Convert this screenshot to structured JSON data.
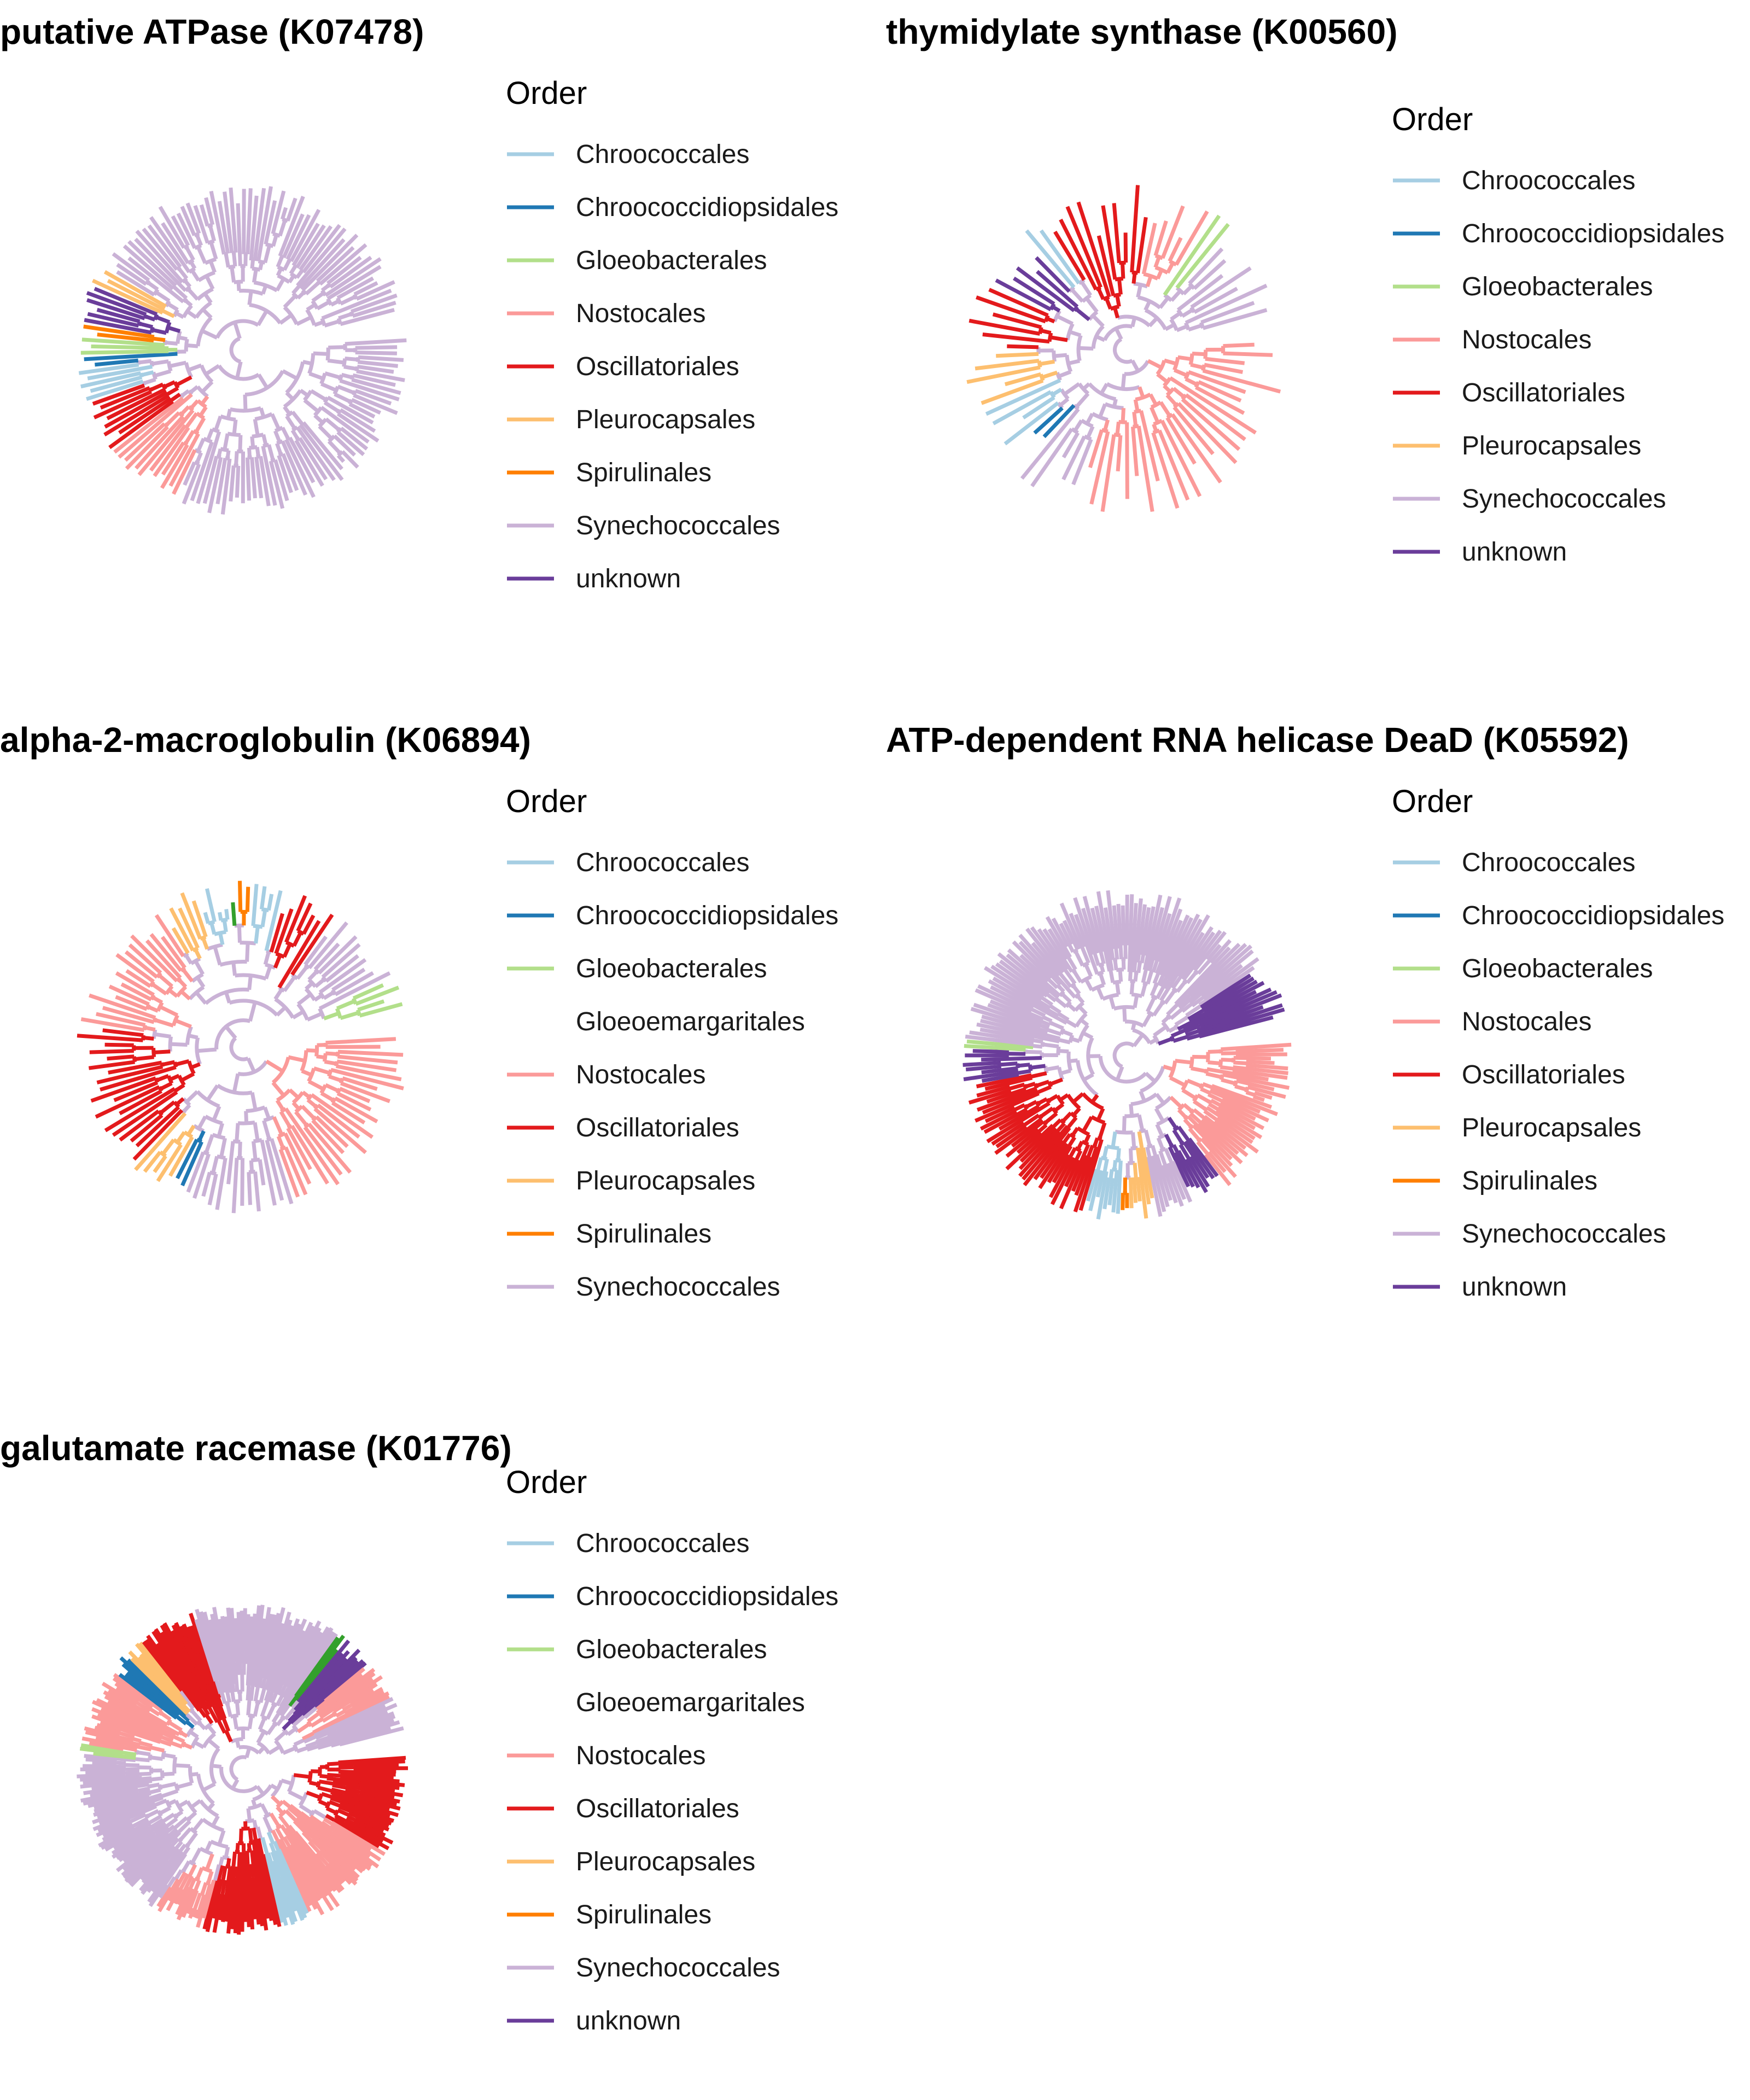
{
  "legend_title": "Order",
  "orders": {
    "Chroococcales": "#a6cee3",
    "Chroococcidiopsidales": "#1f78b4",
    "Gloeobacterales": "#b2df8a",
    "Gloeomargaritales": "#33a02c",
    "Nostocales": "#fb9a99",
    "Oscillatoriales": "#e31a1c",
    "Pleurocapsales": "#fdbf6f",
    "Spirulinales": "#ff7f00",
    "Synechococcales": "#cab2d6",
    "unknown": "#6a3d9a"
  },
  "panels": [
    {
      "title": "putative ATPase (K07478)",
      "legend": [
        "Chroococcales",
        "Chroococcidiopsidales",
        "Gloeobacterales",
        "Nostocales",
        "Oscillatoriales",
        "Pleurocapsales",
        "Spirulinales",
        "Synechococcales",
        "unknown"
      ],
      "clades": [
        {
          "order": "Synechococcales",
          "share": 0.34
        },
        {
          "order": "Nostocales",
          "share": 0.08
        },
        {
          "order": "Oscillatoriales",
          "share": 0.05
        },
        {
          "order": "Chroococcales",
          "share": 0.03
        },
        {
          "order": "Chroococcidiopsidales",
          "share": 0.01
        },
        {
          "order": "Gloeobacterales",
          "share": 0.02
        },
        {
          "order": "Spirulinales",
          "share": 0.01
        },
        {
          "order": "unknown",
          "share": 0.04
        },
        {
          "order": "Pleurocapsales",
          "share": 0.02
        },
        {
          "order": "Synechococcales",
          "share": 0.4
        }
      ]
    },
    {
      "title": "thymidylate synthase (K00560)",
      "legend": [
        "Chroococcales",
        "Chroococcidiopsidales",
        "Gloeobacterales",
        "Nostocales",
        "Oscillatoriales",
        "Pleurocapsales",
        "Synechococcales",
        "unknown"
      ],
      "clades": [
        {
          "order": "Nostocales",
          "share": 0.32
        },
        {
          "order": "Synechococcales",
          "share": 0.06
        },
        {
          "order": "Chroococcidiopsidales",
          "share": 0.03
        },
        {
          "order": "Chroococcales",
          "share": 0.05
        },
        {
          "order": "Pleurocapsales",
          "share": 0.06
        },
        {
          "order": "Oscillatoriales",
          "share": 0.08
        },
        {
          "order": "unknown",
          "share": 0.06
        },
        {
          "order": "Chroococcales",
          "share": 0.03
        },
        {
          "order": "Oscillatoriales",
          "share": 0.12
        },
        {
          "order": "Nostocales",
          "share": 0.06
        },
        {
          "order": "Gloeobacterales",
          "share": 0.03
        },
        {
          "order": "Synechococcales",
          "share": 0.1
        }
      ]
    },
    {
      "title": "alpha-2-macroglobulin (K06894)",
      "legend": [
        "Chroococcales",
        "Chroococcidiopsidales",
        "Gloeobacterales",
        "Gloeoemargaritales",
        "Nostocales",
        "Oscillatoriales",
        "Pleurocapsales",
        "Spirulinales",
        "Synechococcales"
      ],
      "clades": [
        {
          "order": "Nostocales",
          "share": 0.22
        },
        {
          "order": "Synechococcales",
          "share": 0.12
        },
        {
          "order": "Chroococcidiopsidales",
          "share": 0.02
        },
        {
          "order": "Pleurocapsales",
          "share": 0.04
        },
        {
          "order": "Oscillatoriales",
          "share": 0.16
        },
        {
          "order": "Nostocales",
          "share": 0.14
        },
        {
          "order": "Pleurocapsales",
          "share": 0.04
        },
        {
          "order": "Chroococcales",
          "share": 0.03
        },
        {
          "order": "Gloeomargaritales",
          "share": 0.01
        },
        {
          "order": "Spirulinales",
          "share": 0.02
        },
        {
          "order": "Chroococcales",
          "share": 0.03
        },
        {
          "order": "Oscillatoriales",
          "share": 0.06
        },
        {
          "order": "Synechococcales",
          "share": 0.08
        },
        {
          "order": "Gloeobacterales",
          "share": 0.03
        }
      ]
    },
    {
      "title": "ATP-dependent RNA helicase DeaD (K05592)",
      "legend": [
        "Chroococcales",
        "Chroococcidiopsidales",
        "Gloeobacterales",
        "Nostocales",
        "Oscillatoriales",
        "Pleurocapsales",
        "Spirulinales",
        "Synechococcales",
        "unknown"
      ],
      "clades": [
        {
          "order": "Nostocales",
          "share": 0.16
        },
        {
          "order": "unknown",
          "share": 0.04
        },
        {
          "order": "Synechococcales",
          "share": 0.04
        },
        {
          "order": "Pleurocapsales",
          "share": 0.03
        },
        {
          "order": "Spirulinales",
          "share": 0.01
        },
        {
          "order": "Chroococcales",
          "share": 0.04
        },
        {
          "order": "Oscillatoriales",
          "share": 0.18
        },
        {
          "order": "unknown",
          "share": 0.04
        },
        {
          "order": "Gloeobacterales",
          "share": 0.01
        },
        {
          "order": "Synechococcales",
          "share": 0.4
        },
        {
          "order": "unknown",
          "share": 0.05
        }
      ]
    },
    {
      "title": "galutamate racemase (K01776)",
      "legend": [
        "Chroococcales",
        "Chroococcidiopsidales",
        "Gloeobacterales",
        "Gloeoemargaritales",
        "Nostocales",
        "Oscillatoriales",
        "Pleurocapsales",
        "Spirulinales",
        "Synechococcales",
        "unknown"
      ],
      "clades": [
        {
          "order": "Oscillatoriales",
          "share": 0.1
        },
        {
          "order": "Nostocales",
          "share": 0.1
        },
        {
          "order": "Chroococcales",
          "share": 0.03
        },
        {
          "order": "Oscillatoriales",
          "share": 0.08
        },
        {
          "order": "Nostocales",
          "share": 0.05
        },
        {
          "order": "Synechococcales",
          "share": 0.18
        },
        {
          "order": "Gloeobacterales",
          "share": 0.01
        },
        {
          "order": "Nostocales",
          "share": 0.08
        },
        {
          "order": "Chroococcidiopsidales",
          "share": 0.02
        },
        {
          "order": "Pleurocapsales",
          "share": 0.02
        },
        {
          "order": "Oscillatoriales",
          "share": 0.06
        },
        {
          "order": "Synechococcales",
          "share": 0.15
        },
        {
          "order": "Gloeomargaritales",
          "share": 0.01
        },
        {
          "order": "unknown",
          "share": 0.03
        },
        {
          "order": "Nostocales",
          "share": 0.04
        },
        {
          "order": "Synechococcales",
          "share": 0.04
        }
      ]
    }
  ]
}
